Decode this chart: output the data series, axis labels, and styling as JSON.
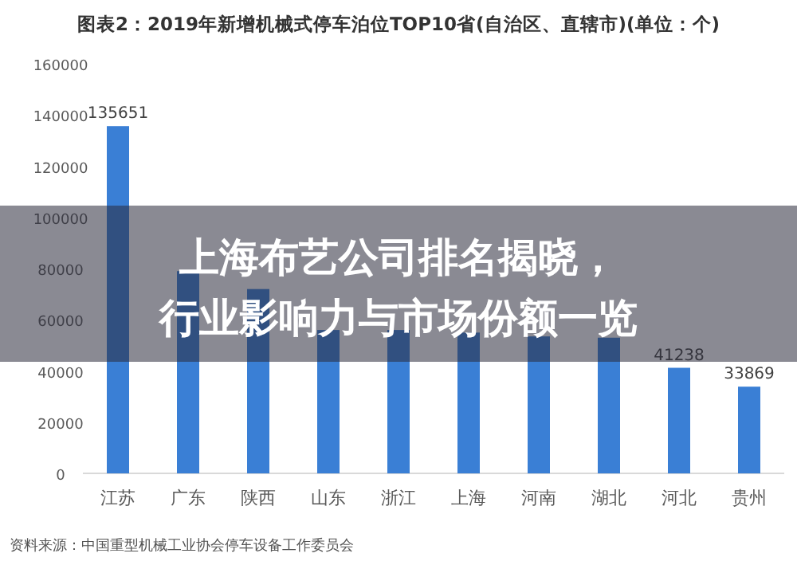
{
  "chart_data": {
    "type": "bar",
    "title": "图表2：2019年新增机械式停车泊位TOP10省(自治区、直辖市)(单位：个)",
    "categories": [
      "江苏",
      "广东",
      "陕西",
      "山东",
      "浙江",
      "上海",
      "河南",
      "湖北",
      "河北",
      "贵州"
    ],
    "values": [
      135651,
      79000,
      72000,
      56000,
      56000,
      55000,
      53500,
      53000,
      41238,
      33869
    ],
    "value_labels": [
      "135651",
      null,
      null,
      null,
      null,
      null,
      null,
      null,
      "41238",
      "33869"
    ],
    "color": "#3a7fd5",
    "ylim": [
      0,
      160000
    ],
    "yticks": [
      0,
      20000,
      40000,
      60000,
      80000,
      100000,
      120000,
      140000,
      160000
    ],
    "grid": false,
    "annotations": [
      "上海布艺公司排名揭晓，行业影响力与市场份额一览",
      "资料来源：中国重型机械工业协会停车设备工作委员会"
    ]
  }
}
